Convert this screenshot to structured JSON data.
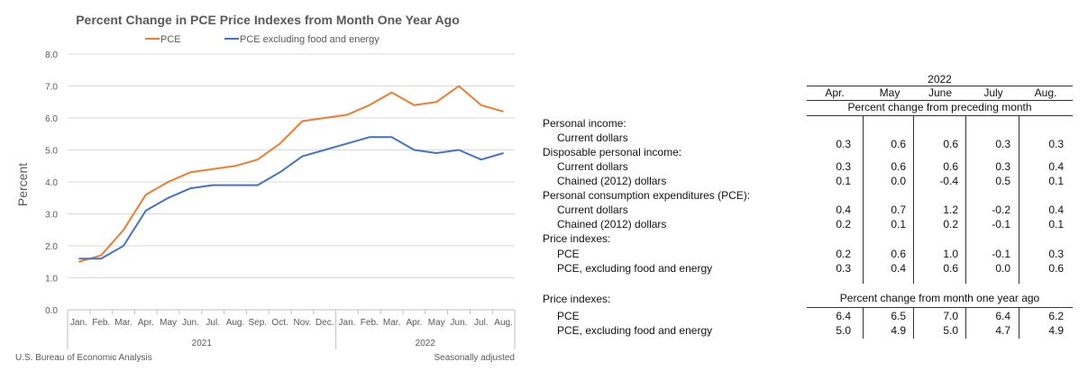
{
  "chart_data": {
    "type": "line",
    "title": "Percent Change in PCE Price Indexes from Month One Year Ago",
    "ylabel": "Percent",
    "ylim": [
      0,
      8
    ],
    "yticks": [
      "0.0",
      "1.0",
      "2.0",
      "3.0",
      "4.0",
      "5.0",
      "6.0",
      "7.0",
      "8.0"
    ],
    "categories": [
      "Jan.",
      "Feb.",
      "Mar.",
      "Apr.",
      "May",
      "Jun.",
      "Jul.",
      "Aug.",
      "Sep.",
      "Oct.",
      "Nov.",
      "Dec.",
      "Jan.",
      "Feb.",
      "Mar.",
      "Apr.",
      "May",
      "Jun.",
      "Jul.",
      "Aug."
    ],
    "years": [
      {
        "label": "2021",
        "from": 0,
        "to": 11
      },
      {
        "label": "2022",
        "from": 12,
        "to": 19
      }
    ],
    "series": [
      {
        "name": "PCE",
        "color": "#ED7D31",
        "values": [
          1.5,
          1.7,
          2.5,
          3.6,
          4.0,
          4.3,
          4.4,
          4.5,
          4.7,
          5.2,
          5.9,
          6.0,
          6.1,
          6.4,
          6.8,
          6.4,
          6.5,
          7.0,
          6.4,
          6.2
        ]
      },
      {
        "name": "PCE excluding food and energy",
        "color": "#4472C4",
        "values": [
          1.6,
          1.6,
          2.0,
          3.1,
          3.5,
          3.8,
          3.9,
          3.9,
          3.9,
          4.3,
          4.8,
          5.0,
          5.2,
          5.4,
          5.4,
          5.0,
          4.9,
          5.0,
          4.7,
          4.9
        ]
      }
    ],
    "grid": true,
    "legend": "top",
    "source": "U.S. Bureau of Economic Analysis",
    "note": "Seasonally adjusted"
  },
  "table": {
    "year": "2022",
    "months": [
      "Apr.",
      "May",
      "June",
      "July",
      "Aug."
    ],
    "subheader_monthly": "Percent change from preceding month",
    "subheader_yearly": "Percent change from month one year ago",
    "rows": [
      {
        "label": "Personal income:",
        "indent": false,
        "values": null
      },
      {
        "label": "Current dollars",
        "indent": true,
        "values": [
          "0.3",
          "0.6",
          "0.6",
          "0.3",
          "0.3"
        ]
      },
      {
        "label": "Disposable personal income:",
        "indent": false,
        "values": null
      },
      {
        "label": "Current dollars",
        "indent": true,
        "values": [
          "0.3",
          "0.6",
          "0.6",
          "0.3",
          "0.4"
        ]
      },
      {
        "label": "Chained (2012) dollars",
        "indent": true,
        "values": [
          "0.1",
          "0.0",
          "-0.4",
          "0.5",
          "0.1"
        ]
      },
      {
        "label": "Personal consumption expenditures (PCE):",
        "indent": false,
        "values": null
      },
      {
        "label": "Current dollars",
        "indent": true,
        "values": [
          "0.4",
          "0.7",
          "1.2",
          "-0.2",
          "0.4"
        ]
      },
      {
        "label": "Chained (2012) dollars",
        "indent": true,
        "values": [
          "0.2",
          "0.1",
          "0.2",
          "-0.1",
          "0.1"
        ]
      },
      {
        "label": "Price indexes:",
        "indent": false,
        "values": null
      },
      {
        "label": "PCE",
        "indent": true,
        "values": [
          "0.2",
          "0.6",
          "1.0",
          "-0.1",
          "0.3"
        ]
      },
      {
        "label": "PCE, excluding food and energy",
        "indent": true,
        "values": [
          "0.3",
          "0.4",
          "0.6",
          "0.0",
          "0.6"
        ]
      }
    ],
    "yearly_title": "Price indexes:",
    "yearly_rows": [
      {
        "label": "PCE",
        "values": [
          "6.4",
          "6.5",
          "7.0",
          "6.4",
          "6.2"
        ]
      },
      {
        "label": "PCE, excluding food and energy",
        "values": [
          "5.0",
          "4.9",
          "5.0",
          "4.7",
          "4.9"
        ]
      }
    ]
  }
}
